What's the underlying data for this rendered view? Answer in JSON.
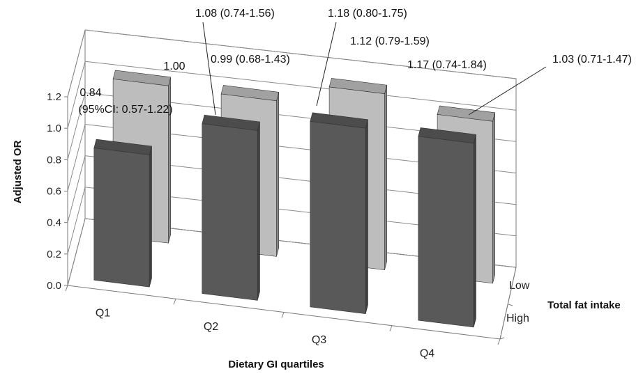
{
  "chart_data": {
    "type": "bar",
    "chart_style": "3d-clustered-column",
    "categories": [
      "Q1",
      "Q2",
      "Q3",
      "Q4"
    ],
    "series": [
      {
        "name": "Low",
        "color": "#bdbdbd",
        "values": [
          1.0,
          0.99,
          1.12,
          1.03
        ],
        "labels": [
          "1.00",
          "0.99 (0.68-1.43)",
          "1.12 (0.79-1.59)",
          "1.03 (0.71-1.47)"
        ]
      },
      {
        "name": "High",
        "color": "#595959",
        "values": [
          0.84,
          1.08,
          1.18,
          1.17
        ],
        "labels": [
          "0.84",
          "1.08 (0.74-1.56)",
          "1.18 (0.80-1.75)",
          "1.17 (0.74-1.84)"
        ]
      }
    ],
    "ci_note": "(95%CI: 0.57-1.22)",
    "xlabel": "Dietary GI quartiles",
    "ylabel": "Adjusted OR",
    "zlabel": "Total fat intake",
    "ylim": [
      0,
      1.2
    ],
    "yticks": [
      "0.0",
      "0.2",
      "0.4",
      "0.6",
      "0.8",
      "1.0",
      "1.2"
    ],
    "grid": true,
    "legend": "none"
  }
}
